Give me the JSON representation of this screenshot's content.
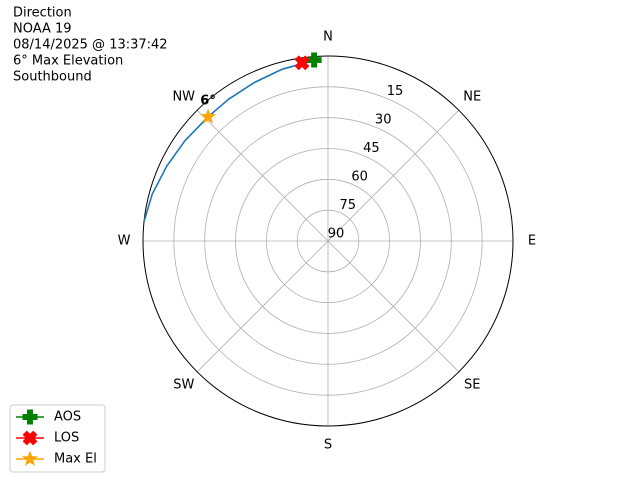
{
  "chart_data": {
    "type": "polar",
    "title_lines": [
      "Direction",
      "NOAA 19",
      "08/14/2025 @ 13:37:42",
      "6° Max Elevation",
      "Southbound"
    ],
    "rlim": [
      90,
      0
    ],
    "rticks": [
      15,
      30,
      45,
      60,
      75,
      90
    ],
    "thetaticks": [
      {
        "value": 0,
        "label": "N"
      },
      {
        "value": 45,
        "label": "NE"
      },
      {
        "value": 90,
        "label": "E"
      },
      {
        "value": 135,
        "label": "SE"
      },
      {
        "value": 180,
        "label": "S"
      },
      {
        "value": 225,
        "label": "SW"
      },
      {
        "value": 270,
        "label": "W"
      },
      {
        "value": 315,
        "label": "NW"
      }
    ],
    "grid": true,
    "track": {
      "color": "#1f77b4",
      "azimuth": [
        355,
        345,
        335,
        325,
        316,
        305,
        295,
        285,
        276
      ],
      "elevation": [
        2,
        3.5,
        5,
        5.8,
        6,
        5,
        3.5,
        1.5,
        0
      ]
    },
    "series": [
      {
        "name": "AOS",
        "color": "#008000",
        "marker": "plus",
        "azimuth": [
          355.6
        ],
        "elevation": [
          1.7
        ]
      },
      {
        "name": "LOS",
        "color": "#ff0000",
        "marker": "x",
        "azimuth": [
          351.7
        ],
        "elevation": [
          2.4
        ]
      },
      {
        "name": "Max El",
        "color": "#ffa500",
        "marker": "star",
        "azimuth": [
          316
        ],
        "elevation": [
          6
        ]
      }
    ],
    "annotation": "6°",
    "legend": "lower left"
  }
}
